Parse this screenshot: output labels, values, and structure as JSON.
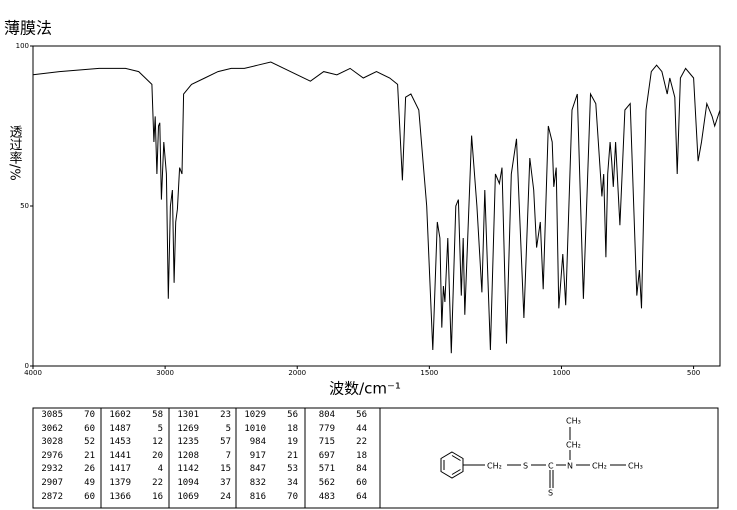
{
  "chart_data": {
    "type": "line",
    "title": "薄膜法",
    "ylabel": "透过率/%",
    "xlabel": "波数/cm⁻¹",
    "color": "#000000",
    "xlim": [
      4000,
      400
    ],
    "x_scale": {
      "break": 2000,
      "factor": 2
    },
    "xticks": [
      4000,
      3000,
      2000,
      1500,
      1000,
      500
    ],
    "ylim": [
      0,
      100
    ],
    "yticks": [
      0,
      50,
      100
    ],
    "series": [
      {
        "x": [
          4000,
          3800,
          3500,
          3300,
          3200,
          3100,
          3085,
          3075,
          3062,
          3050,
          3040,
          3028,
          3010,
          2990,
          2976,
          2960,
          2945,
          2932,
          2920,
          2907,
          2890,
          2872,
          2860,
          2800,
          2700,
          2600,
          2500,
          2400,
          2300,
          2200,
          2100,
          2000,
          1950,
          1900,
          1850,
          1800,
          1750,
          1700,
          1650,
          1620,
          1602,
          1590,
          1570,
          1540,
          1510,
          1487,
          1470,
          1460,
          1453,
          1447,
          1441,
          1430,
          1417,
          1400,
          1390,
          1379,
          1372,
          1366,
          1340,
          1320,
          1301,
          1290,
          1269,
          1250,
          1235,
          1225,
          1208,
          1190,
          1170,
          1142,
          1120,
          1105,
          1094,
          1080,
          1069,
          1050,
          1035,
          1029,
          1020,
          1010,
          995,
          984,
          960,
          940,
          917,
          890,
          870,
          847,
          840,
          832,
          825,
          816,
          810,
          804,
          795,
          779,
          760,
          740,
          715,
          705,
          697,
          680,
          660,
          640,
          620,
          600,
          590,
          571,
          562,
          550,
          530,
          500,
          483,
          470,
          450,
          430,
          420,
          400
        ],
        "values": [
          91,
          92,
          93,
          93,
          92,
          88,
          70,
          78,
          60,
          75,
          76,
          52,
          70,
          60,
          21,
          50,
          55,
          26,
          45,
          49,
          62,
          60,
          85,
          88,
          90,
          92,
          93,
          93,
          94,
          95,
          93,
          91,
          89,
          92,
          91,
          93,
          90,
          92,
          90,
          88,
          58,
          84,
          85,
          80,
          50,
          5,
          45,
          40,
          12,
          25,
          20,
          40,
          4,
          50,
          52,
          22,
          40,
          16,
          72,
          50,
          23,
          55,
          5,
          60,
          57,
          62,
          7,
          60,
          71,
          15,
          65,
          55,
          37,
          45,
          24,
          75,
          70,
          56,
          62,
          18,
          35,
          19,
          80,
          85,
          21,
          85,
          82,
          53,
          60,
          34,
          60,
          70,
          64,
          56,
          70,
          44,
          80,
          82,
          22,
          30,
          18,
          80,
          92,
          94,
          92,
          85,
          90,
          84,
          60,
          90,
          93,
          90,
          64,
          70,
          82,
          78,
          75,
          80
        ]
      }
    ]
  },
  "peak_table": {
    "columns": [
      [
        [
          "3085",
          "70"
        ],
        [
          "3062",
          "60"
        ],
        [
          "3028",
          "52"
        ],
        [
          "2976",
          "21"
        ],
        [
          "2932",
          "26"
        ],
        [
          "2907",
          "49"
        ],
        [
          "2872",
          "60"
        ]
      ],
      [
        [
          "1602",
          "58"
        ],
        [
          "1487",
          "5"
        ],
        [
          "1453",
          "12"
        ],
        [
          "1441",
          "20"
        ],
        [
          "1417",
          "4"
        ],
        [
          "1379",
          "22"
        ],
        [
          "1366",
          "16"
        ]
      ],
      [
        [
          "1301",
          "23"
        ],
        [
          "1269",
          "5"
        ],
        [
          "1235",
          "57"
        ],
        [
          "1208",
          "7"
        ],
        [
          "1142",
          "15"
        ],
        [
          "1094",
          "37"
        ],
        [
          "1069",
          "24"
        ]
      ],
      [
        [
          "1029",
          "56"
        ],
        [
          "1010",
          "18"
        ],
        [
          "984",
          "19"
        ],
        [
          "917",
          "21"
        ],
        [
          "847",
          "53"
        ],
        [
          "832",
          "34"
        ],
        [
          "816",
          "70"
        ]
      ],
      [
        [
          "804",
          "56"
        ],
        [
          "779",
          "44"
        ],
        [
          "715",
          "22"
        ],
        [
          "697",
          "18"
        ],
        [
          "571",
          "84"
        ],
        [
          "562",
          "60"
        ],
        [
          "483",
          "64"
        ]
      ]
    ]
  },
  "structure": {
    "benzyl_ch2": "CH₂",
    "s1": "S",
    "c": "C",
    "s2": "S",
    "n": "N",
    "top_ch3": "CH₃",
    "top_ch2": "CH₂",
    "right_ch2": "CH₂",
    "right_ch3": "CH₃"
  }
}
